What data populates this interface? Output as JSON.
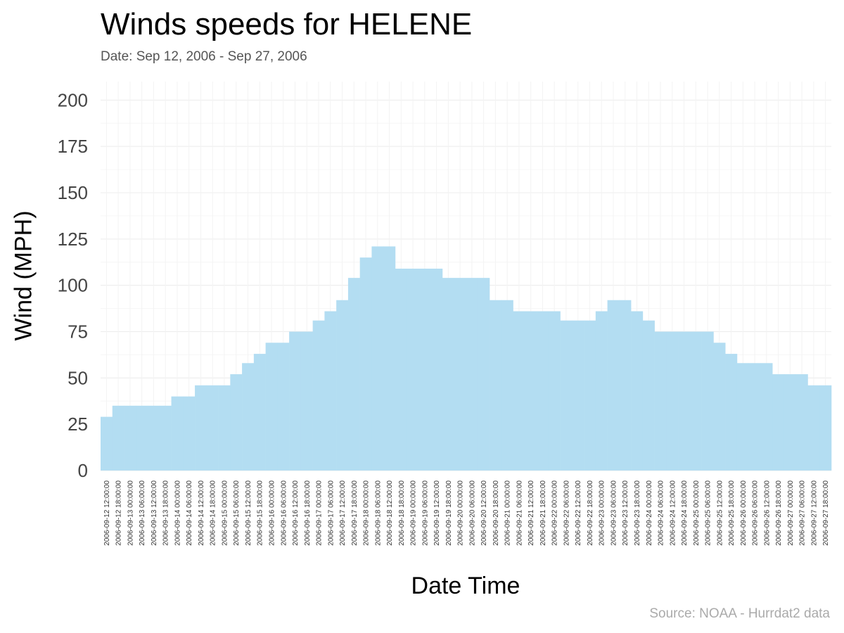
{
  "chart_data": {
    "type": "bar",
    "title": "Winds speeds for HELENE",
    "subtitle": "Date:  Sep 12, 2006 - Sep 27, 2006",
    "xlabel": "Date Time",
    "ylabel": "Wind (MPH)",
    "source": "Source: NOAA - Hurrdat2 data",
    "ylim": [
      0,
      210
    ],
    "yticks": [
      0,
      25,
      50,
      75,
      100,
      125,
      150,
      175,
      200
    ],
    "grid": true,
    "legend": "none",
    "bar_color": "#b3ddf2",
    "categories": [
      "2006-09-12 12:00:00",
      "2006-09-12 18:00:00",
      "2006-09-13 00:00:00",
      "2006-09-13 06:00:00",
      "2006-09-13 12:00:00",
      "2006-09-13 18:00:00",
      "2006-09-14 00:00:00",
      "2006-09-14 06:00:00",
      "2006-09-14 12:00:00",
      "2006-09-14 18:00:00",
      "2006-09-15 00:00:00",
      "2006-09-15 06:00:00",
      "2006-09-15 12:00:00",
      "2006-09-15 18:00:00",
      "2006-09-16 00:00:00",
      "2006-09-16 06:00:00",
      "2006-09-16 12:00:00",
      "2006-09-16 18:00:00",
      "2006-09-17 00:00:00",
      "2006-09-17 06:00:00",
      "2006-09-17 12:00:00",
      "2006-09-17 18:00:00",
      "2006-09-18 00:00:00",
      "2006-09-18 06:00:00",
      "2006-09-18 12:00:00",
      "2006-09-18 18:00:00",
      "2006-09-19 00:00:00",
      "2006-09-19 06:00:00",
      "2006-09-19 12:00:00",
      "2006-09-19 18:00:00",
      "2006-09-20 00:00:00",
      "2006-09-20 06:00:00",
      "2006-09-20 12:00:00",
      "2006-09-20 18:00:00",
      "2006-09-21 00:00:00",
      "2006-09-21 06:00:00",
      "2006-09-21 12:00:00",
      "2006-09-21 18:00:00",
      "2006-09-22 00:00:00",
      "2006-09-22 06:00:00",
      "2006-09-22 12:00:00",
      "2006-09-22 18:00:00",
      "2006-09-23 00:00:00",
      "2006-09-23 06:00:00",
      "2006-09-23 12:00:00",
      "2006-09-23 18:00:00",
      "2006-09-24 00:00:00",
      "2006-09-24 06:00:00",
      "2006-09-24 12:00:00",
      "2006-09-24 18:00:00",
      "2006-09-25 00:00:00",
      "2006-09-25 06:00:00",
      "2006-09-25 12:00:00",
      "2006-09-25 18:00:00",
      "2006-09-26 00:00:00",
      "2006-09-26 06:00:00",
      "2006-09-26 12:00:00",
      "2006-09-26 18:00:00",
      "2006-09-27 00:00:00",
      "2006-09-27 06:00:00",
      "2006-09-27 12:00:00",
      "2006-09-27 18:00:00"
    ],
    "values": [
      29,
      35,
      35,
      35,
      35,
      35,
      40,
      40,
      46,
      46,
      46,
      52,
      58,
      63,
      69,
      69,
      75,
      75,
      81,
      86,
      92,
      104,
      115,
      121,
      121,
      109,
      109,
      109,
      109,
      104,
      104,
      104,
      104,
      92,
      92,
      86,
      86,
      86,
      86,
      81,
      81,
      81,
      86,
      92,
      92,
      86,
      81,
      75,
      75,
      75,
      75,
      75,
      69,
      63,
      58,
      58,
      58,
      52,
      52,
      52,
      46,
      46
    ]
  }
}
